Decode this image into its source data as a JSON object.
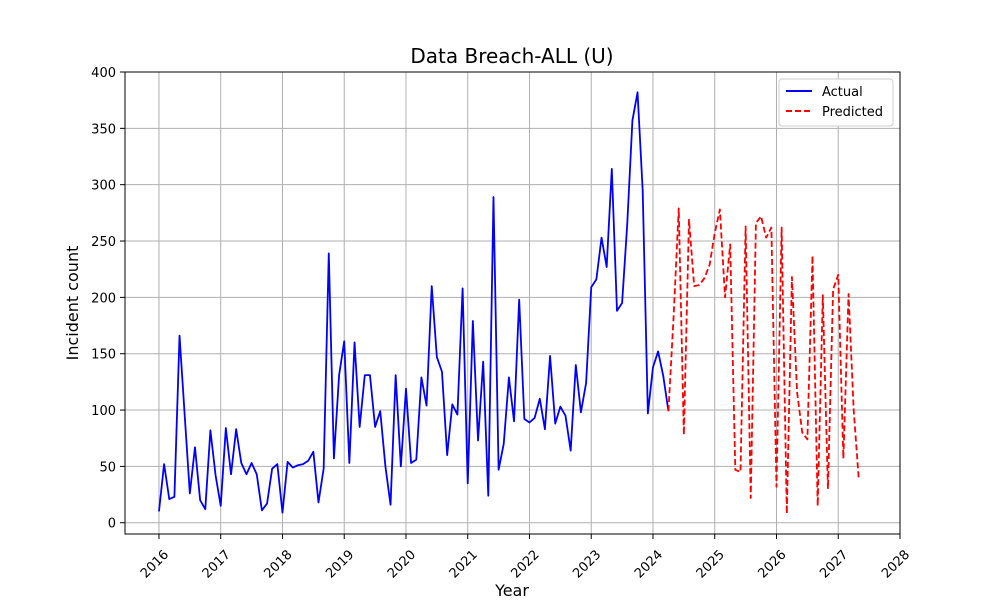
{
  "chart_data": {
    "type": "line",
    "title": "Data Breach-ALL (U)",
    "xlabel": "Year",
    "ylabel": "Incident count",
    "xlim": [
      2015.45,
      2028.0
    ],
    "ylim": [
      -10,
      400
    ],
    "x_ticks": [
      "2016",
      "2017",
      "2018",
      "2019",
      "2020",
      "2021",
      "2022",
      "2023",
      "2024",
      "2025",
      "2026",
      "2027",
      "2028"
    ],
    "y_ticks": [
      "0",
      "50",
      "100",
      "150",
      "200",
      "250",
      "300",
      "350",
      "400"
    ],
    "grid": true,
    "legend_position": "top-right",
    "series": [
      {
        "name": "Actual",
        "color": "#0000ff",
        "style": "solid",
        "x": [
          2016.0,
          2016.083,
          2016.167,
          2016.25,
          2016.333,
          2016.417,
          2016.5,
          2016.583,
          2016.667,
          2016.75,
          2016.833,
          2016.917,
          2017.0,
          2017.083,
          2017.167,
          2017.25,
          2017.333,
          2017.417,
          2017.5,
          2017.583,
          2017.667,
          2017.75,
          2017.833,
          2017.917,
          2018.0,
          2018.083,
          2018.167,
          2018.25,
          2018.333,
          2018.417,
          2018.5,
          2018.583,
          2018.667,
          2018.75,
          2018.833,
          2018.917,
          2019.0,
          2019.083,
          2019.167,
          2019.25,
          2019.333,
          2019.417,
          2019.5,
          2019.583,
          2019.667,
          2019.75,
          2019.833,
          2019.917,
          2020.0,
          2020.083,
          2020.167,
          2020.25,
          2020.333,
          2020.417,
          2020.5,
          2020.583,
          2020.667,
          2020.75,
          2020.833,
          2020.917,
          2021.0,
          2021.083,
          2021.167,
          2021.25,
          2021.333,
          2021.417,
          2021.5,
          2021.583,
          2021.667,
          2021.75,
          2021.833,
          2021.917,
          2022.0,
          2022.083,
          2022.167,
          2022.25,
          2022.333,
          2022.417,
          2022.5,
          2022.583,
          2022.667,
          2022.75,
          2022.833,
          2022.917,
          2023.0,
          2023.083,
          2023.167,
          2023.25,
          2023.333,
          2023.417,
          2023.5,
          2023.583,
          2023.667,
          2023.75,
          2023.833,
          2023.917,
          2024.0,
          2024.083,
          2024.167,
          2024.25
        ],
        "values": [
          10,
          52,
          21,
          23,
          166,
          95,
          26,
          67,
          20,
          12,
          82,
          42,
          15,
          84,
          43,
          83,
          53,
          43,
          53,
          43,
          11,
          17,
          48,
          52,
          9,
          54,
          49,
          51,
          52,
          55,
          63,
          18,
          48,
          239,
          57,
          131,
          161,
          53,
          160,
          85,
          131,
          131,
          85,
          99,
          50,
          16,
          131,
          50,
          119,
          53,
          56,
          129,
          104,
          210,
          147,
          134,
          60,
          105,
          96,
          208,
          35,
          179,
          73,
          143,
          24,
          289,
          47,
          70,
          129,
          90,
          198,
          92,
          89,
          93,
          110,
          83,
          148,
          88,
          103,
          95,
          64,
          140,
          98,
          124,
          209,
          216,
          253,
          227,
          314,
          188,
          195,
          265,
          357,
          382,
          295,
          97,
          138,
          152,
          130,
          99
        ]
      },
      {
        "name": "Predicted",
        "color": "#ff0000",
        "style": "dashed",
        "x": [
          2024.25,
          2024.333,
          2024.417,
          2024.5,
          2024.583,
          2024.667,
          2024.75,
          2024.833,
          2024.917,
          2025.0,
          2025.083,
          2025.167,
          2025.25,
          2025.333,
          2025.417,
          2025.5,
          2025.583,
          2025.667,
          2025.75,
          2025.833,
          2025.917,
          2026.0,
          2026.083,
          2026.167,
          2026.25,
          2026.333,
          2026.417,
          2026.5,
          2026.583,
          2026.667,
          2026.75,
          2026.833,
          2026.917,
          2027.0,
          2027.083,
          2027.167,
          2027.25,
          2027.333
        ],
        "values": [
          99,
          182,
          279,
          78,
          269,
          210,
          211,
          217,
          229,
          257,
          278,
          200,
          247,
          47,
          45,
          263,
          22,
          266,
          272,
          253,
          262,
          32,
          262,
          8,
          218,
          116,
          80,
          74,
          237,
          15,
          202,
          30,
          207,
          220,
          57,
          203,
          100,
          38
        ]
      }
    ]
  }
}
